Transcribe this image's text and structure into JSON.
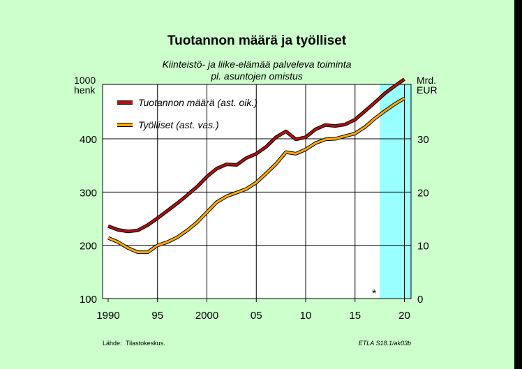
{
  "chart_data": {
    "type": "line",
    "title": "Tuotannon määrä ja työlliset",
    "subtitle_line1": "Kiinteistö- ja liike-elämää palveleva toiminta",
    "subtitle_line2": "pl. asuntojen omistus",
    "left_axis": {
      "unit_line1": "1000",
      "unit_line2": "henk",
      "range": [
        100,
        500
      ],
      "ticks": [
        "100",
        "200",
        "300",
        "400"
      ]
    },
    "right_axis": {
      "unit_line1": "Mrd.",
      "unit_line2": "EUR",
      "range": [
        0,
        40
      ],
      "ticks": [
        "0",
        "10",
        "20",
        "30"
      ]
    },
    "x_axis": {
      "range": [
        1990,
        2021
      ],
      "tick_labels": [
        "1990",
        "95",
        "2000",
        "05",
        "10",
        "15",
        "20"
      ],
      "tick_values": [
        1990,
        1995,
        2000,
        2005,
        2010,
        2015,
        2020
      ]
    },
    "forecast_start": 2017.5,
    "forecast_marker": "*",
    "forecast_color": "#99ffff",
    "grid": true,
    "legend_position": "top-left",
    "series": [
      {
        "name": "Tuotannon määrä (ast. oik.)",
        "axis": "right",
        "color": "#b01010",
        "points": [
          [
            1990,
            13.6
          ],
          [
            1991,
            12.9
          ],
          [
            1992,
            12.6
          ],
          [
            1993,
            12.8
          ],
          [
            1994,
            13.8
          ],
          [
            1995,
            15.1
          ],
          [
            1996,
            16.5
          ],
          [
            1997,
            17.9
          ],
          [
            1998,
            19.4
          ],
          [
            1999,
            21.0
          ],
          [
            2000,
            22.9
          ],
          [
            2001,
            24.4
          ],
          [
            2002,
            25.2
          ],
          [
            2003,
            25.1
          ],
          [
            2004,
            26.4
          ],
          [
            2005,
            27.2
          ],
          [
            2006,
            28.5
          ],
          [
            2007,
            30.3
          ],
          [
            2008,
            31.4
          ],
          [
            2009,
            29.9
          ],
          [
            2010,
            30.3
          ],
          [
            2011,
            31.8
          ],
          [
            2012,
            32.6
          ],
          [
            2013,
            32.4
          ],
          [
            2014,
            32.7
          ],
          [
            2015,
            33.6
          ],
          [
            2016,
            35.2
          ],
          [
            2017,
            36.8
          ],
          [
            2018,
            38.5
          ],
          [
            2019,
            39.9
          ],
          [
            2020,
            41.2
          ]
        ]
      },
      {
        "name": "Työlliset (ast. vas.)",
        "axis": "left",
        "color": "#ffaa00",
        "points": [
          [
            1990,
            214
          ],
          [
            1991,
            206
          ],
          [
            1992,
            195
          ],
          [
            1993,
            187
          ],
          [
            1994,
            187
          ],
          [
            1995,
            200
          ],
          [
            1996,
            206
          ],
          [
            1997,
            215
          ],
          [
            1998,
            228
          ],
          [
            1999,
            243
          ],
          [
            2000,
            262
          ],
          [
            2001,
            281
          ],
          [
            2002,
            292
          ],
          [
            2003,
            299
          ],
          [
            2004,
            306
          ],
          [
            2005,
            318
          ],
          [
            2006,
            335
          ],
          [
            2007,
            353
          ],
          [
            2008,
            375
          ],
          [
            2009,
            372
          ],
          [
            2010,
            380
          ],
          [
            2011,
            392
          ],
          [
            2012,
            399
          ],
          [
            2013,
            400
          ],
          [
            2014,
            405
          ],
          [
            2015,
            410
          ],
          [
            2016,
            422
          ],
          [
            2017,
            438
          ],
          [
            2018,
            452
          ],
          [
            2019,
            465
          ],
          [
            2020,
            476
          ]
        ]
      }
    ]
  },
  "footer": {
    "source_label": "Lähde:",
    "source_value": "Tilastokeskus.",
    "code": "ETLA S18.1/ak03b"
  }
}
